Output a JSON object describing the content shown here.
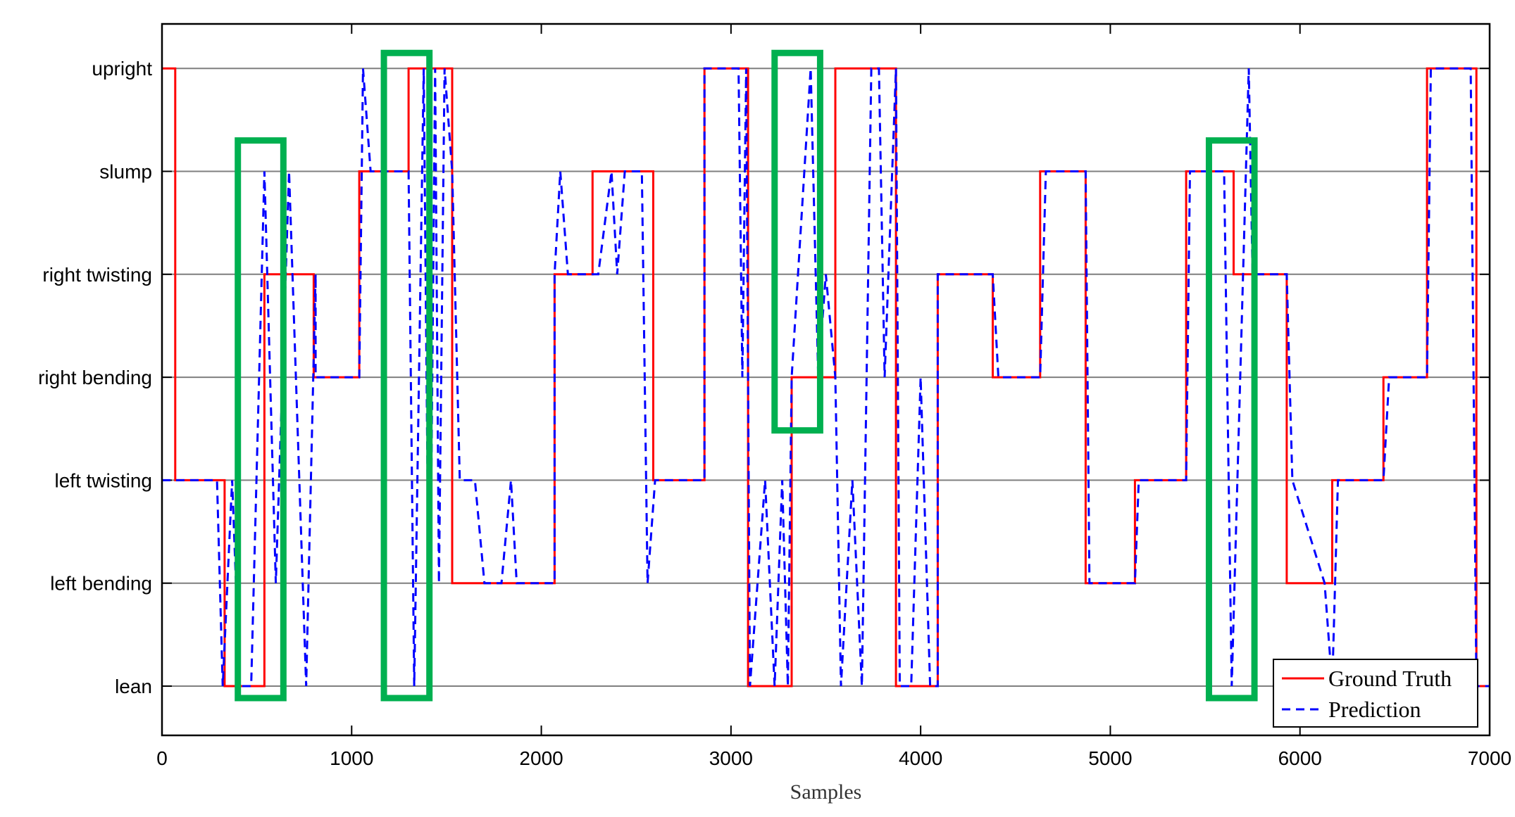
{
  "chart_data": {
    "type": "line",
    "title": "",
    "xlabel": "Samples",
    "ylabel": "",
    "xlim": [
      0,
      7000
    ],
    "x_ticks": [
      "0",
      "1000",
      "2000",
      "3000",
      "4000",
      "5000",
      "6000",
      "7000"
    ],
    "y_categories": [
      "lean",
      "left bending",
      "left twisting",
      "right bending",
      "right twisting",
      "slump",
      "upright"
    ],
    "grid": "horizontal",
    "legend": {
      "placement": "bottom-right",
      "entries": [
        "Ground Truth",
        "Prediction"
      ]
    },
    "colors": {
      "ground_truth": "#ff0000",
      "prediction": "#0000ff",
      "highlight": "#00b050"
    },
    "series": [
      {
        "name": "Ground Truth",
        "style": "solid",
        "points": [
          [
            0,
            6
          ],
          [
            70,
            6
          ],
          [
            70,
            2
          ],
          [
            330,
            2
          ],
          [
            330,
            0
          ],
          [
            540,
            0
          ],
          [
            540,
            4
          ],
          [
            800,
            4
          ],
          [
            800,
            3
          ],
          [
            1040,
            3
          ],
          [
            1040,
            5
          ],
          [
            1300,
            5
          ],
          [
            1300,
            6
          ],
          [
            1530,
            6
          ],
          [
            1530,
            1
          ],
          [
            2070,
            1
          ],
          [
            2070,
            4
          ],
          [
            2270,
            4
          ],
          [
            2270,
            5
          ],
          [
            2590,
            5
          ],
          [
            2590,
            2
          ],
          [
            2860,
            2
          ],
          [
            2860,
            6
          ],
          [
            3090,
            6
          ],
          [
            3090,
            0
          ],
          [
            3320,
            0
          ],
          [
            3320,
            3
          ],
          [
            3550,
            3
          ],
          [
            3550,
            6
          ],
          [
            3870,
            6
          ],
          [
            3870,
            0
          ],
          [
            4090,
            0
          ],
          [
            4090,
            4
          ],
          [
            4380,
            4
          ],
          [
            4380,
            3
          ],
          [
            4630,
            3
          ],
          [
            4630,
            5
          ],
          [
            4870,
            5
          ],
          [
            4870,
            1
          ],
          [
            5130,
            1
          ],
          [
            5130,
            2
          ],
          [
            5400,
            2
          ],
          [
            5400,
            5
          ],
          [
            5650,
            5
          ],
          [
            5650,
            4
          ],
          [
            5930,
            4
          ],
          [
            5930,
            1
          ],
          [
            6170,
            1
          ],
          [
            6170,
            2
          ],
          [
            6440,
            2
          ],
          [
            6440,
            3
          ],
          [
            6670,
            3
          ],
          [
            6670,
            6
          ],
          [
            6930,
            6
          ],
          [
            6930,
            0
          ],
          [
            7000,
            0
          ]
        ]
      },
      {
        "name": "Prediction",
        "style": "dashed",
        "points": [
          [
            0,
            2
          ],
          [
            290,
            2
          ],
          [
            320,
            0
          ],
          [
            370,
            2
          ],
          [
            410,
            0
          ],
          [
            470,
            0
          ],
          [
            540,
            5
          ],
          [
            600,
            1
          ],
          [
            670,
            5
          ],
          [
            760,
            0
          ],
          [
            810,
            4
          ],
          [
            810,
            3
          ],
          [
            1040,
            3
          ],
          [
            1060,
            6
          ],
          [
            1100,
            5
          ],
          [
            1300,
            5
          ],
          [
            1330,
            0
          ],
          [
            1380,
            6
          ],
          [
            1410,
            0
          ],
          [
            1440,
            6
          ],
          [
            1460,
            1
          ],
          [
            1490,
            6
          ],
          [
            1530,
            5
          ],
          [
            1570,
            2
          ],
          [
            1650,
            2
          ],
          [
            1700,
            1
          ],
          [
            1790,
            1
          ],
          [
            1840,
            2
          ],
          [
            1870,
            1
          ],
          [
            2070,
            1
          ],
          [
            2070,
            4
          ],
          [
            2100,
            5
          ],
          [
            2140,
            4
          ],
          [
            2300,
            4
          ],
          [
            2370,
            5
          ],
          [
            2400,
            4
          ],
          [
            2440,
            5
          ],
          [
            2530,
            5
          ],
          [
            2560,
            1
          ],
          [
            2600,
            2
          ],
          [
            2860,
            2
          ],
          [
            2860,
            6
          ],
          [
            3040,
            6
          ],
          [
            3060,
            3
          ],
          [
            3080,
            6
          ],
          [
            3100,
            0
          ],
          [
            3180,
            2
          ],
          [
            3230,
            0
          ],
          [
            3270,
            2
          ],
          [
            3300,
            0
          ],
          [
            3320,
            3
          ],
          [
            3420,
            6
          ],
          [
            3460,
            3
          ],
          [
            3500,
            4
          ],
          [
            3550,
            3
          ],
          [
            3580,
            0
          ],
          [
            3640,
            2
          ],
          [
            3690,
            0
          ],
          [
            3740,
            6
          ],
          [
            3780,
            6
          ],
          [
            3810,
            3
          ],
          [
            3870,
            6
          ],
          [
            3890,
            0
          ],
          [
            3950,
            0
          ],
          [
            4000,
            3
          ],
          [
            4050,
            0
          ],
          [
            4090,
            0
          ],
          [
            4090,
            4
          ],
          [
            4380,
            4
          ],
          [
            4410,
            3
          ],
          [
            4630,
            3
          ],
          [
            4660,
            5
          ],
          [
            4870,
            5
          ],
          [
            4890,
            1
          ],
          [
            5130,
            1
          ],
          [
            5150,
            2
          ],
          [
            5400,
            2
          ],
          [
            5420,
            5
          ],
          [
            5600,
            5
          ],
          [
            5640,
            0
          ],
          [
            5700,
            4
          ],
          [
            5730,
            6
          ],
          [
            5750,
            4
          ],
          [
            5930,
            4
          ],
          [
            5960,
            2
          ],
          [
            6130,
            1
          ],
          [
            6170,
            0
          ],
          [
            6200,
            2
          ],
          [
            6440,
            2
          ],
          [
            6470,
            3
          ],
          [
            6670,
            3
          ],
          [
            6690,
            6
          ],
          [
            6900,
            6
          ],
          [
            6930,
            0
          ],
          [
            7000,
            0
          ]
        ]
      }
    ],
    "highlights": [
      {
        "x": [
          400,
          640
        ],
        "y": [
          0,
          5.3
        ]
      },
      {
        "x": [
          1170,
          1410
        ],
        "y": [
          0,
          6.15
        ]
      },
      {
        "x": [
          3230,
          3470
        ],
        "y": [
          2.6,
          6.15
        ]
      },
      {
        "x": [
          5520,
          5760
        ],
        "y": [
          0,
          5.3
        ]
      }
    ]
  }
}
